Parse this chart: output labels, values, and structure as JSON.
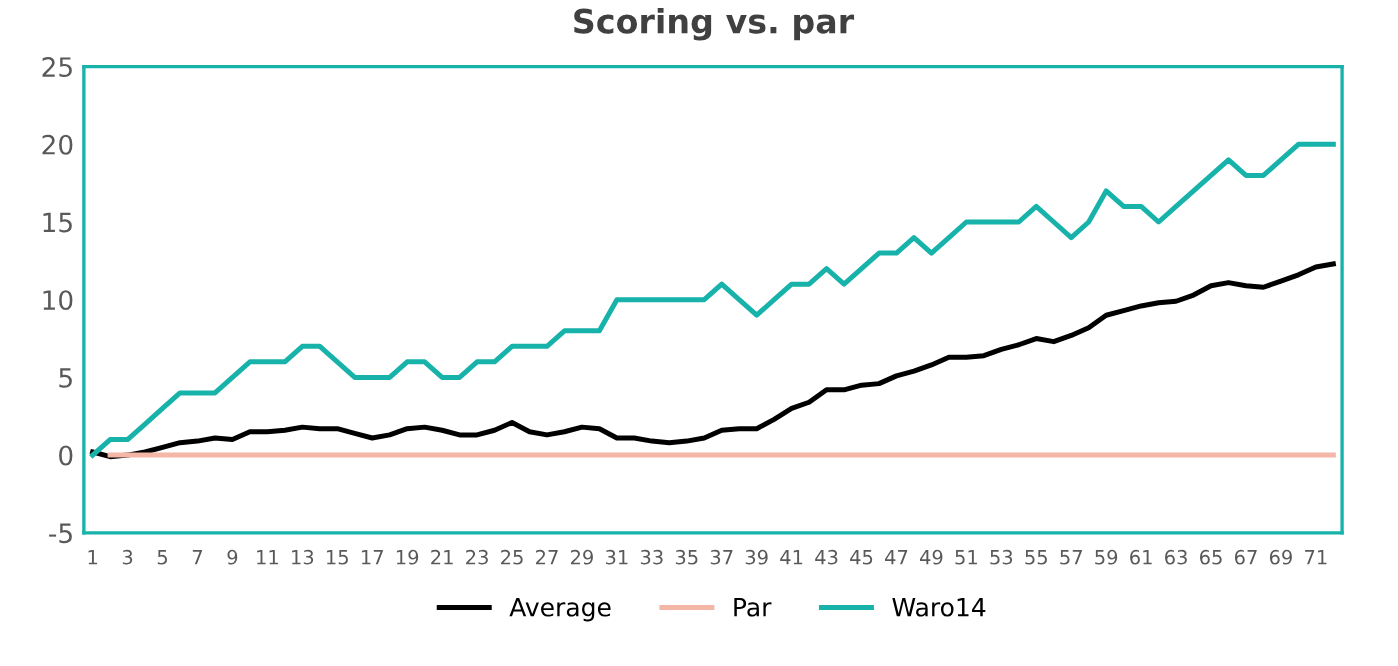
{
  "chart_data": {
    "type": "line",
    "title": "Scoring vs. par",
    "categories": [
      "1",
      null,
      "3",
      null,
      "5",
      null,
      "7",
      null,
      "9",
      null,
      "11",
      null,
      "13",
      null,
      "15",
      null,
      "17",
      null,
      "19",
      null,
      "21",
      null,
      "23",
      null,
      "25",
      null,
      "27",
      null,
      "29",
      null,
      "31",
      null,
      "33",
      null,
      "35",
      null,
      "37",
      null,
      "39",
      null,
      "41",
      null,
      "43",
      null,
      "45",
      null,
      "47",
      null,
      "49",
      null,
      "51",
      null,
      "53",
      null,
      "55",
      null,
      "57",
      null,
      "59",
      null,
      "61",
      null,
      "63",
      null,
      "65",
      null,
      "67",
      null,
      "69",
      null,
      "71",
      null
    ],
    "series": [
      {
        "name": "Average",
        "color": "#000000",
        "values": [
          0.2,
          -0.1,
          0,
          0.2,
          0.5,
          0.8,
          0.9,
          1.1,
          1.0,
          1.5,
          1.5,
          1.6,
          1.8,
          1.7,
          1.7,
          1.4,
          1.1,
          1.3,
          1.7,
          1.8,
          1.6,
          1.3,
          1.3,
          1.6,
          2.1,
          1.5,
          1.3,
          1.5,
          1.8,
          1.7,
          1.1,
          1.1,
          0.9,
          0.8,
          0.9,
          1.1,
          1.6,
          1.7,
          1.7,
          2.3,
          3.0,
          3.4,
          4.2,
          4.2,
          4.5,
          4.6,
          5.1,
          5.4,
          5.8,
          6.3,
          6.3,
          6.4,
          6.8,
          7.1,
          7.5,
          7.3,
          7.7,
          8.2,
          9.0,
          9.3,
          9.6,
          9.8,
          9.9,
          10.3,
          10.9,
          11.1,
          10.9,
          10.8,
          11.2,
          11.6,
          12.1,
          12.3
        ]
      },
      {
        "name": "Par",
        "color": "#f4b6a6",
        "values": [
          null,
          0,
          0,
          0,
          0,
          0,
          0,
          0,
          0,
          0,
          0,
          0,
          0,
          0,
          0,
          0,
          0,
          0,
          0,
          0,
          0,
          0,
          0,
          0,
          0,
          0,
          0,
          0,
          0,
          0,
          0,
          0,
          0,
          0,
          0,
          0,
          0,
          0,
          0,
          0,
          0,
          0,
          0,
          0,
          0,
          0,
          0,
          0,
          0,
          0,
          0,
          0,
          0,
          0,
          0,
          0,
          0,
          0,
          0,
          0,
          0,
          0,
          0,
          0,
          0,
          0,
          0,
          0,
          0,
          0,
          0,
          0
        ]
      },
      {
        "name": "Waro14",
        "color": "#17b3aa",
        "values": [
          0,
          1,
          1,
          2,
          3,
          4,
          4,
          4,
          5,
          6,
          6,
          6,
          7,
          7,
          6,
          5,
          5,
          5,
          6,
          6,
          5,
          5,
          6,
          6,
          7,
          7,
          7,
          8,
          8,
          8,
          10,
          10,
          10,
          10,
          10,
          10,
          11,
          10,
          9,
          10,
          11,
          11,
          12,
          11,
          12,
          13,
          13,
          14,
          13,
          14,
          15,
          15,
          15,
          15,
          16,
          15,
          14,
          15,
          17,
          16,
          16,
          15,
          16,
          17,
          18,
          19,
          18,
          18,
          19,
          20,
          20,
          20
        ]
      }
    ],
    "ylim": [
      -5,
      25
    ],
    "yticks": [
      -5,
      0,
      5,
      10,
      15,
      20,
      25
    ],
    "grid": false,
    "legend": "bottom",
    "marker": "none",
    "line_style": "solid"
  }
}
